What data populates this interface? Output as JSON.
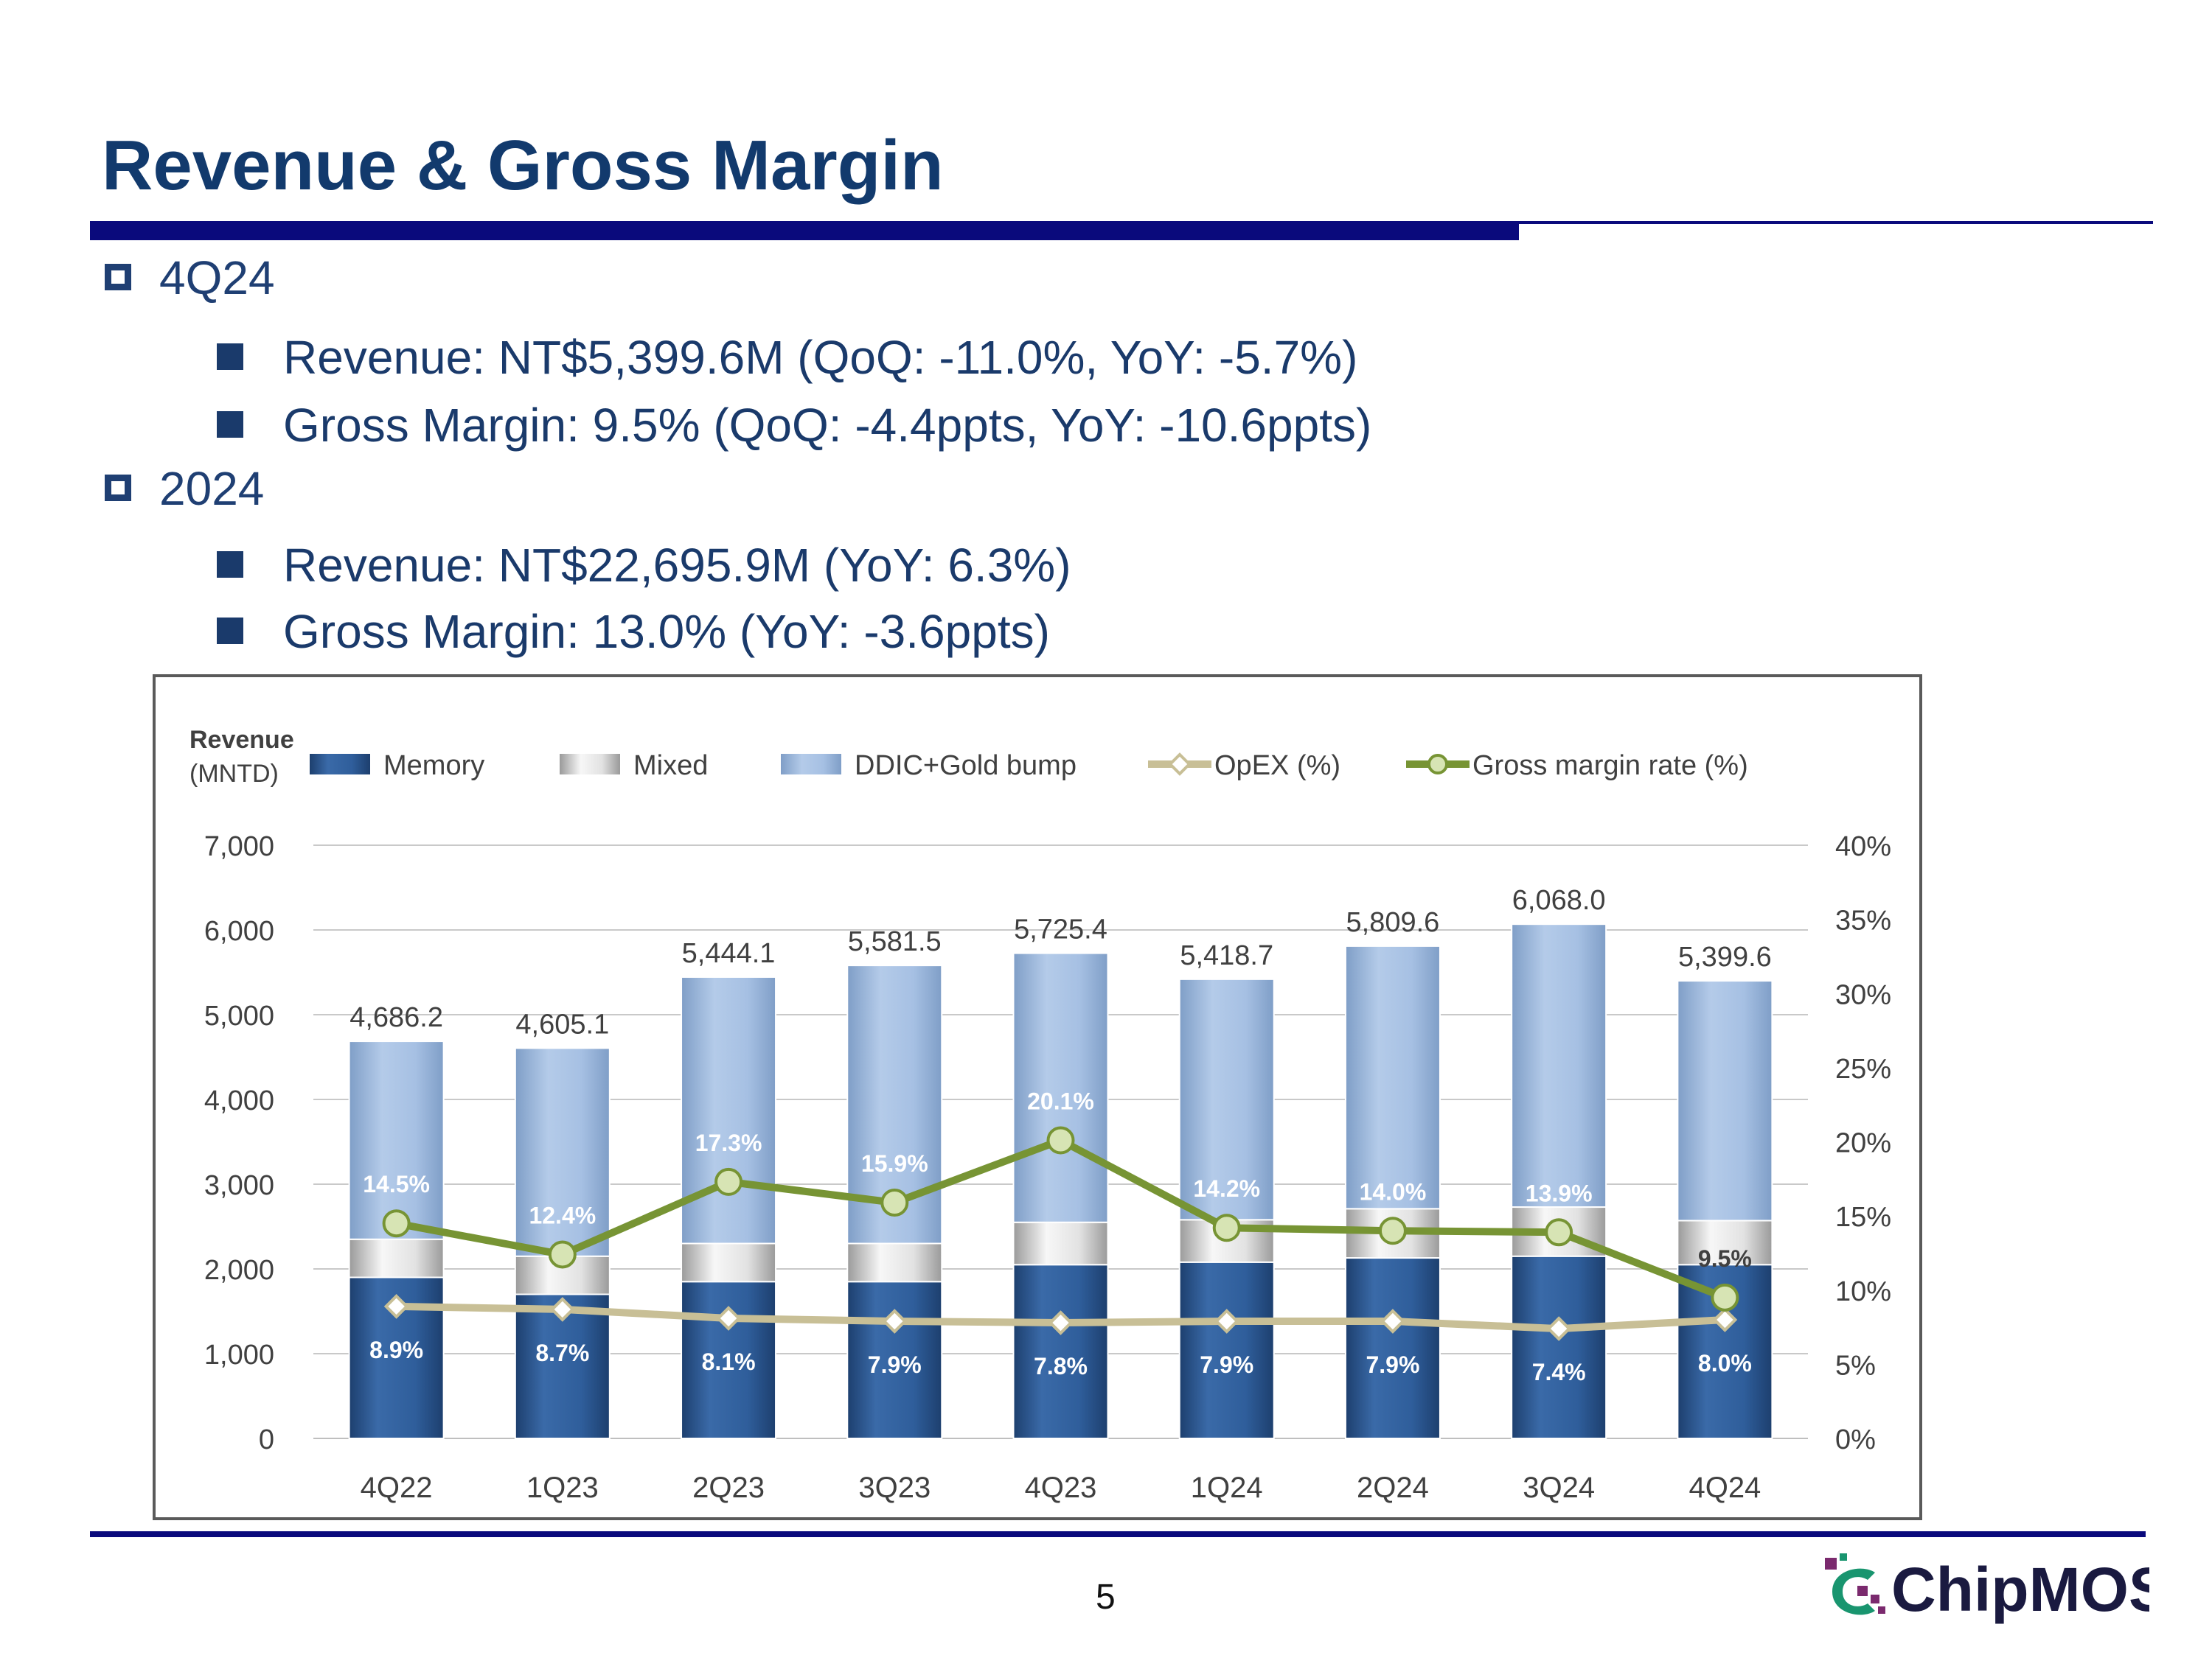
{
  "slide": {
    "title": "Revenue & Gross Margin",
    "page_number": "5",
    "logo_text": "ChipMOS"
  },
  "bullets": [
    {
      "heading": "4Q24",
      "items": [
        "Revenue: NT$5,399.6M (QoQ: -11.0%, YoY: -5.7%)",
        "Gross Margin: 9.5% (QoQ: -4.4ppts, YoY: -10.6ppts)"
      ]
    },
    {
      "heading": "2024",
      "items": [
        "Revenue: NT$22,695.9M (YoY: 6.3%)",
        "Gross Margin: 13.0% (YoY: -3.6ppts)"
      ]
    }
  ],
  "chart_data": {
    "type": "bar",
    "stacked": true,
    "ylabel": "Revenue",
    "ylabel_unit": "(MNTD)",
    "categories": [
      "4Q22",
      "1Q23",
      "2Q23",
      "3Q23",
      "4Q23",
      "1Q24",
      "2Q24",
      "3Q24",
      "4Q24"
    ],
    "series": [
      {
        "name": "Memory",
        "color": "#2f5e9b",
        "values": [
          1900,
          1700,
          1850,
          1850,
          2050,
          2080,
          2130,
          2150,
          2050
        ]
      },
      {
        "name": "Mixed",
        "color": "#dcdcdc",
        "values": [
          450,
          450,
          450,
          450,
          500,
          500,
          580,
          580,
          520
        ]
      },
      {
        "name": "DDIC+Gold bump",
        "color": "#a6c0e3",
        "values": [
          2336.2,
          2455.1,
          3144.1,
          3281.5,
          3175.4,
          2838.7,
          3099.6,
          3338.0,
          2829.6
        ]
      }
    ],
    "totals": [
      4686.2,
      4605.1,
      5444.1,
      5581.5,
      5725.4,
      5418.7,
      5809.6,
      6068.0,
      5399.6
    ],
    "total_labels": [
      "4,686.2",
      "4,605.1",
      "5,444.1",
      "5,581.5",
      "5,725.4",
      "5,418.7",
      "5,809.6",
      "6,068.0",
      "5,399.6"
    ],
    "lines": [
      {
        "name": "OpEX (%)",
        "color": "#c8bf96",
        "marker": "diamond",
        "values": [
          8.9,
          8.7,
          8.1,
          7.9,
          7.8,
          7.9,
          7.9,
          7.4,
          8.0
        ],
        "labels": [
          "8.9%",
          "8.7%",
          "8.1%",
          "7.9%",
          "7.8%",
          "7.9%",
          "7.9%",
          "7.4%",
          "8.0%"
        ]
      },
      {
        "name": "Gross margin rate (%)",
        "color": "#779434",
        "marker": "circle",
        "values": [
          14.5,
          12.4,
          17.3,
          15.9,
          20.1,
          14.2,
          14.0,
          13.9,
          9.5
        ],
        "labels": [
          "14.5%",
          "12.4%",
          "17.3%",
          "15.9%",
          "20.1%",
          "14.2%",
          "14.0%",
          "13.9%",
          "9.5%"
        ]
      }
    ],
    "ylim": [
      0,
      7000
    ],
    "yticks": [
      "0",
      "1,000",
      "2,000",
      "3,000",
      "4,000",
      "5,000",
      "6,000",
      "7,000"
    ],
    "y2lim": [
      0,
      40
    ],
    "y2ticks": [
      "0%",
      "5%",
      "10%",
      "15%",
      "20%",
      "25%",
      "30%",
      "35%",
      "40%"
    ],
    "grid": true,
    "legend_position": "top"
  }
}
